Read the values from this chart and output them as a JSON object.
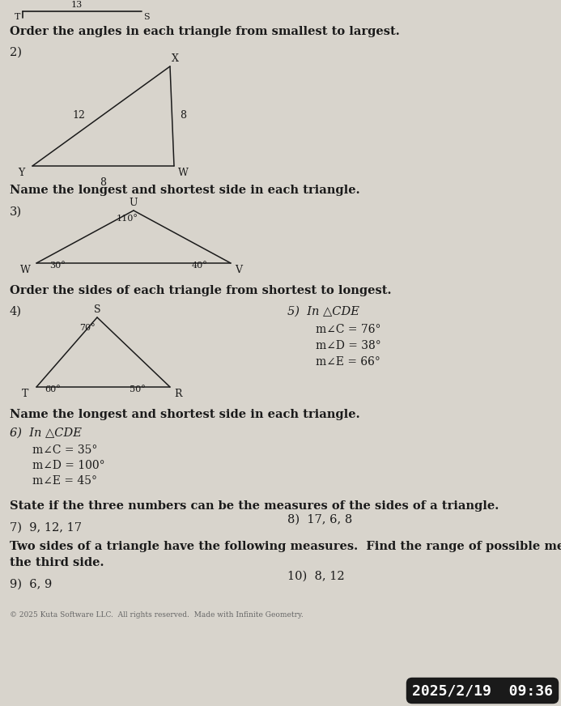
{
  "bg_color": "#d8d4cc",
  "text_color": "#1a1a1a",
  "section1_title": "Order the angles in each triangle from smallest to largest.",
  "section2_title": "Name the longest and shortest side in each triangle.",
  "section3_title": "Order the sides of each triangle from shortest to longest.",
  "section4_title": "Name the longest and shortest side in each triangle.",
  "section5_title": "State if the three numbers can be the measures of the sides of a triangle.",
  "section6_line1": "Two sides of a triangle have the following measures.  Find the range of possible measures for",
  "section6_line2": "the third side.",
  "footer": "© 2025 Kuta Software LLC.  All rights reserved.  Made with Infinite Geometry.",
  "timestamp": "2025/2/19  09:36",
  "fig_w": 6.93,
  "fig_h": 8.72,
  "dpi": 100
}
